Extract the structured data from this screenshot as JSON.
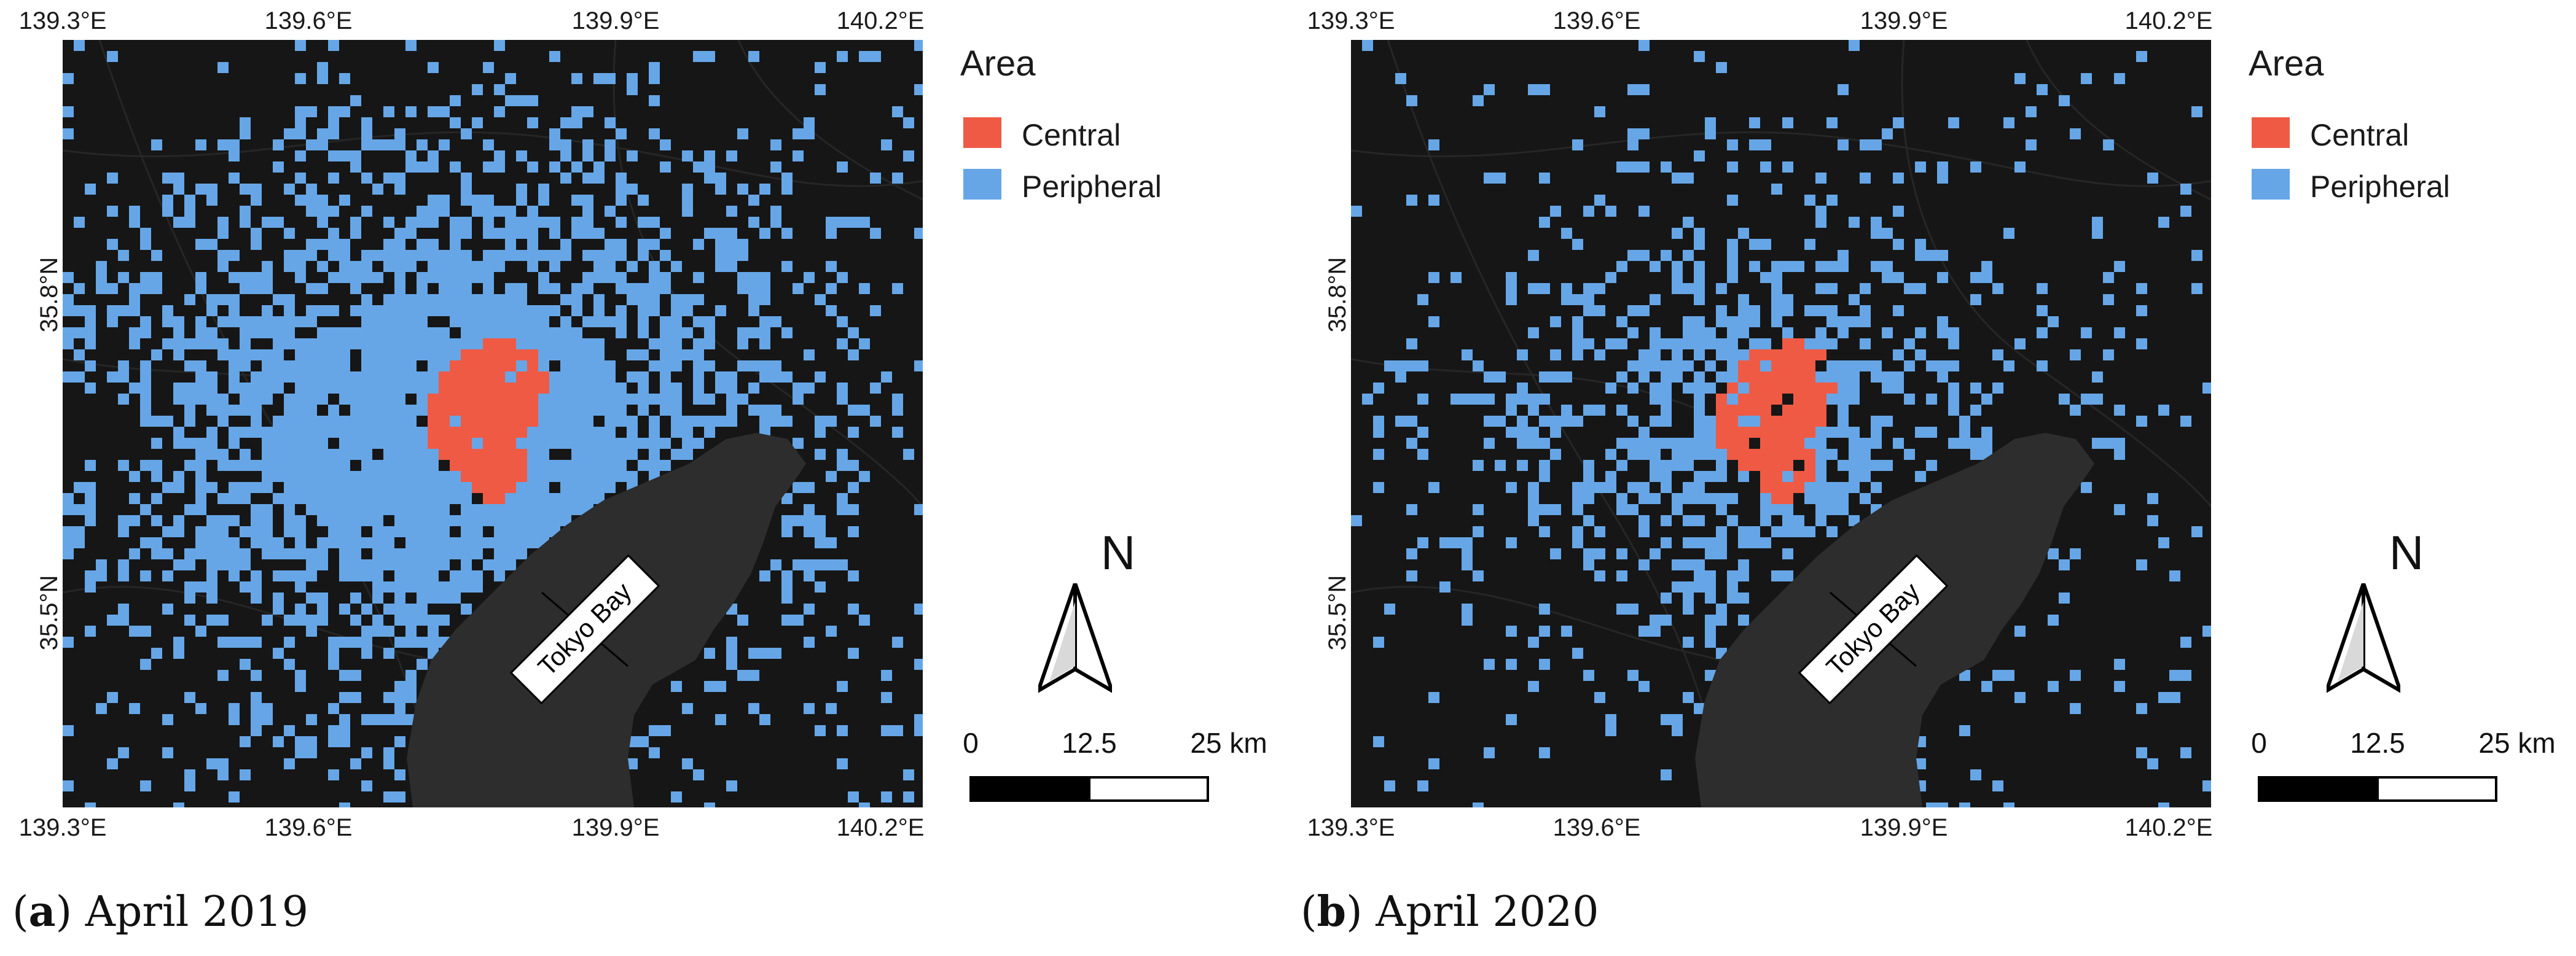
{
  "figure": {
    "panels": [
      {
        "label": "a",
        "caption": "April 2019",
        "density": "high",
        "x_ticks": [
          "139.3°E",
          "139.6°E",
          "139.9°E",
          "140.2°E"
        ],
        "y_ticks": [
          "35.8°N",
          "35.5°N"
        ],
        "water_label": "Tokyo Bay",
        "legend": {
          "title": "Area",
          "items": [
            {
              "label": "Central",
              "color": "#ef5a45"
            },
            {
              "label": "Peripheral",
              "color": "#66a6e6"
            }
          ]
        },
        "north": "N",
        "scale_labels": [
          "0",
          "12.5",
          "25 km"
        ]
      },
      {
        "label": "b",
        "caption": "April 2020",
        "density": "low",
        "x_ticks": [
          "139.3°E",
          "139.6°E",
          "139.9°E",
          "140.2°E"
        ],
        "y_ticks": [
          "35.8°N",
          "35.5°N"
        ],
        "water_label": "Tokyo Bay",
        "legend": {
          "title": "Area",
          "items": [
            {
              "label": "Central",
              "color": "#ef5a45"
            },
            {
              "label": "Peripheral",
              "color": "#66a6e6"
            }
          ]
        },
        "north": "N",
        "scale_labels": [
          "0",
          "12.5",
          "25 km"
        ]
      }
    ],
    "colors": {
      "land": "#161616",
      "water": "#2d2d2d",
      "road": "#2a2a2a",
      "scale_fill": "#000000"
    }
  }
}
